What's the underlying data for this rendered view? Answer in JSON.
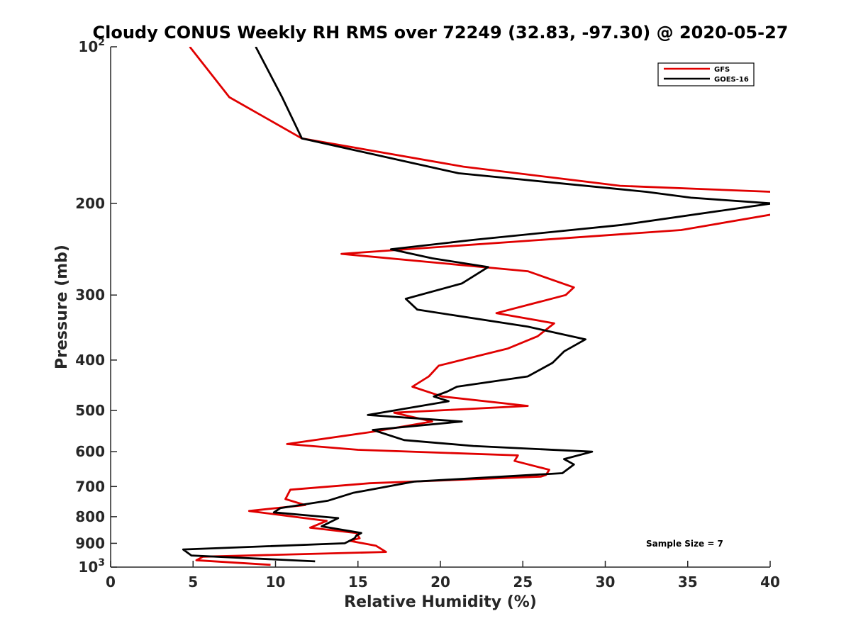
{
  "chart_data": {
    "type": "line",
    "title": "Cloudy CONUS Weekly RH RMS over 72249 (32.83, -97.30) @ 2020-05-27",
    "xlabel": "Relative Humidity (%)",
    "ylabel": "Pressure (mb)",
    "xlim": [
      0,
      40
    ],
    "ylim": [
      100,
      1000
    ],
    "y_scale": "log",
    "y_reversed": true,
    "grid": false,
    "legend_position": "top-right",
    "x_ticks": [
      0,
      5,
      10,
      15,
      20,
      25,
      30,
      35,
      40
    ],
    "x_tick_labels": [
      "0",
      "5",
      "10",
      "15",
      "20",
      "25",
      "30",
      "35",
      "40"
    ],
    "y_ticks": [
      100,
      200,
      300,
      400,
      500,
      600,
      700,
      800,
      900,
      1000
    ],
    "y_tick_labels": [
      {
        "base": "10",
        "exp": "2"
      },
      {
        "base": "200"
      },
      {
        "base": "300"
      },
      {
        "base": "400"
      },
      {
        "base": "500"
      },
      {
        "base": "600"
      },
      {
        "base": "700"
      },
      {
        "base": "800"
      },
      {
        "base": "900"
      },
      {
        "base": "10",
        "exp": "3"
      }
    ],
    "annotation": "Sample Size = 7",
    "series": [
      {
        "name": "GFS",
        "color": "#e00000",
        "points": [
          [
            4.8,
            100
          ],
          [
            7.2,
            125
          ],
          [
            11.6,
            150
          ],
          [
            21.4,
            170
          ],
          [
            30.9,
            185
          ],
          [
            40.1,
            190
          ],
          [
            40.1,
            210
          ],
          [
            34.6,
            225
          ],
          [
            14.0,
            250
          ],
          [
            25.3,
            270
          ],
          [
            28.1,
            290
          ],
          [
            27.6,
            300
          ],
          [
            23.4,
            325
          ],
          [
            26.9,
            340
          ],
          [
            25.9,
            360
          ],
          [
            24.1,
            380
          ],
          [
            19.9,
            410
          ],
          [
            19.3,
            430
          ],
          [
            18.3,
            450
          ],
          [
            20.1,
            470
          ],
          [
            25.3,
            490
          ],
          [
            17.2,
            505
          ],
          [
            19.5,
            525
          ],
          [
            15.8,
            550
          ],
          [
            10.7,
            580
          ],
          [
            15.0,
            595
          ],
          [
            24.7,
            610
          ],
          [
            24.5,
            625
          ],
          [
            26.6,
            650
          ],
          [
            26.4,
            665
          ],
          [
            26.1,
            670
          ],
          [
            15.7,
            690
          ],
          [
            10.9,
            710
          ],
          [
            10.6,
            740
          ],
          [
            11.8,
            760
          ],
          [
            8.4,
            780
          ],
          [
            13.1,
            815
          ],
          [
            12.1,
            840
          ],
          [
            14.9,
            860
          ],
          [
            15.1,
            880
          ],
          [
            14.5,
            890
          ],
          [
            16.1,
            910
          ],
          [
            16.7,
            935
          ],
          [
            5.6,
            955
          ],
          [
            5.2,
            970
          ],
          [
            9.7,
            990
          ]
        ]
      },
      {
        "name": "GOES-16",
        "color": "#000000",
        "points": [
          [
            8.8,
            100
          ],
          [
            10.4,
            125
          ],
          [
            11.6,
            150
          ],
          [
            21.1,
            175
          ],
          [
            32.5,
            190
          ],
          [
            35.2,
            195
          ],
          [
            40.1,
            200
          ],
          [
            31.0,
            220
          ],
          [
            22.0,
            235
          ],
          [
            17.0,
            245
          ],
          [
            19.5,
            255
          ],
          [
            22.9,
            265
          ],
          [
            21.3,
            285
          ],
          [
            17.9,
            305
          ],
          [
            18.6,
            320
          ],
          [
            25.3,
            345
          ],
          [
            28.8,
            365
          ],
          [
            27.5,
            385
          ],
          [
            26.8,
            405
          ],
          [
            25.3,
            430
          ],
          [
            21.0,
            450
          ],
          [
            20.4,
            460
          ],
          [
            19.6,
            470
          ],
          [
            20.5,
            480
          ],
          [
            15.6,
            510
          ],
          [
            21.3,
            525
          ],
          [
            15.9,
            545
          ],
          [
            17.8,
            570
          ],
          [
            22.0,
            585
          ],
          [
            29.2,
            600
          ],
          [
            27.5,
            620
          ],
          [
            28.1,
            635
          ],
          [
            27.4,
            660
          ],
          [
            18.4,
            685
          ],
          [
            14.7,
            720
          ],
          [
            13.2,
            745
          ],
          [
            10.3,
            770
          ],
          [
            9.9,
            785
          ],
          [
            13.8,
            805
          ],
          [
            12.8,
            835
          ],
          [
            15.2,
            860
          ],
          [
            14.9,
            870
          ],
          [
            14.8,
            880
          ],
          [
            14.2,
            900
          ],
          [
            4.4,
            925
          ],
          [
            4.9,
            950
          ],
          [
            12.4,
            975
          ]
        ]
      }
    ]
  }
}
